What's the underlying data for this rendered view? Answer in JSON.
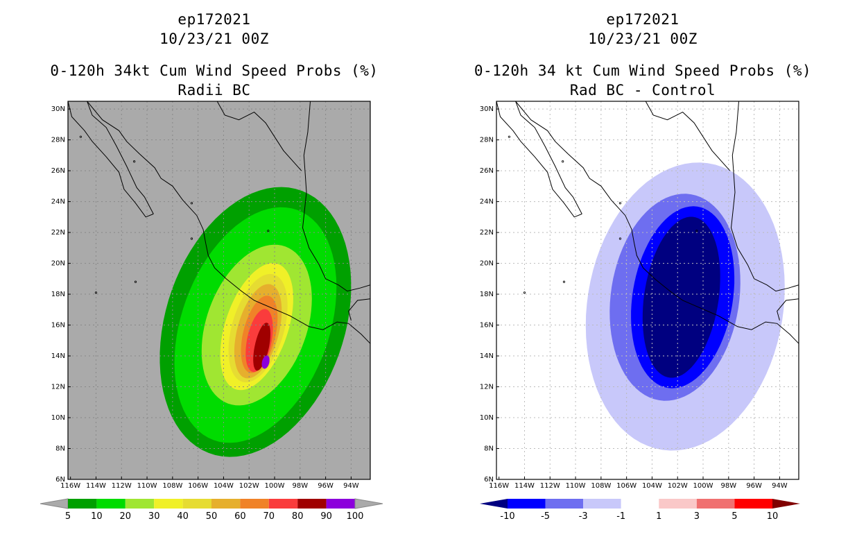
{
  "panels": [
    {
      "id": "left",
      "storm_id": "ep172021",
      "datetime": "10/23/21 00Z",
      "title": "0-120h 34kt Cum Wind Speed Probs (%)",
      "subtitle": "Radii BC",
      "background_color": "#aaaaaa",
      "colorbar": {
        "labels": [
          "5",
          "10",
          "20",
          "30",
          "40",
          "50",
          "60",
          "70",
          "80",
          "90",
          "100"
        ],
        "colors": [
          "#00a000",
          "#00dc00",
          "#a0e632",
          "#f0f028",
          "#e6dc32",
          "#e6af2d",
          "#f08228",
          "#fa3c3c",
          "#a00000",
          "#8c00dc"
        ],
        "left_triangle_color": "#aaaaaa",
        "right_triangle_color": "#aaaaaa"
      },
      "contour_colors": [
        "#00a000",
        "#00dc00",
        "#a0e632",
        "#f0f028",
        "#e6dc32",
        "#e6af2d",
        "#f08228",
        "#fa3c3c",
        "#a00000",
        "#8c00dc"
      ]
    },
    {
      "id": "right",
      "storm_id": "ep172021",
      "datetime": "10/23/21 00Z",
      "title": "0-120h 34 kt Cum Wind Speed Probs (%)",
      "subtitle": "Rad BC - Control",
      "background_color": "#ffffff",
      "colorbar": {
        "labels": [
          "-10",
          "-5",
          "-3",
          "-1",
          "1",
          "3",
          "5",
          "10"
        ],
        "colors": [
          "#0000ff",
          "#6e6ef0",
          "#c8c8fa",
          "#ffffff",
          "#fac8c8",
          "#f07070",
          "#ff0000"
        ],
        "left_triangle_color": "#000080",
        "right_triangle_color": "#800000"
      },
      "contour_colors": [
        "#c8c8fa",
        "#6e6ef0",
        "#0000ff",
        "#000080"
      ]
    }
  ],
  "axes": {
    "lon_labels": [
      "116W",
      "114W",
      "112W",
      "110W",
      "108W",
      "106W",
      "104W",
      "102W",
      "100W",
      "98W",
      "96W",
      "94W"
    ],
    "lat_labels": [
      "6N",
      "8N",
      "10N",
      "12N",
      "14N",
      "16N",
      "18N",
      "20N",
      "22N",
      "24N",
      "26N",
      "28N",
      "30N"
    ]
  }
}
